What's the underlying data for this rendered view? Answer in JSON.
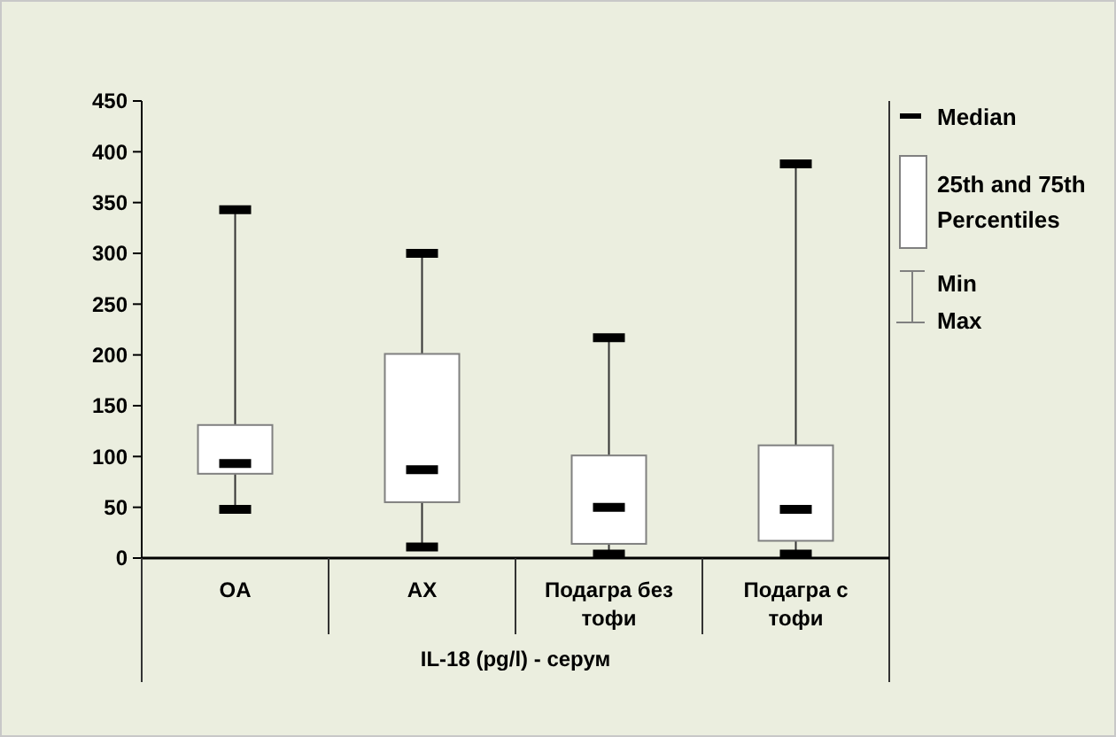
{
  "chart_data": {
    "type": "box",
    "xlabel": "IL-18 (pg/l) - серум",
    "categories": [
      "OA",
      "AX",
      "Подагра без тофи",
      "Подагра с тофи"
    ],
    "boxes": [
      {
        "low": 48,
        "q1": 83,
        "median": 93,
        "q3": 131,
        "high": 343
      },
      {
        "low": 11,
        "q1": 55,
        "median": 87,
        "q3": 201,
        "high": 300
      },
      {
        "low": 4,
        "q1": 14,
        "median": 50,
        "q3": 101,
        "high": 217
      },
      {
        "low": 4,
        "q1": 17,
        "median": 48,
        "q3": 111,
        "high": 388
      }
    ],
    "color": "#ffffff",
    "ylim": [
      0,
      450
    ],
    "yticks": [
      0,
      50,
      100,
      150,
      200,
      250,
      300,
      350,
      400,
      450
    ],
    "grid": false,
    "annotations": [
      "Median",
      "25th and 75th Percentiles",
      "Min",
      "Max"
    ]
  }
}
